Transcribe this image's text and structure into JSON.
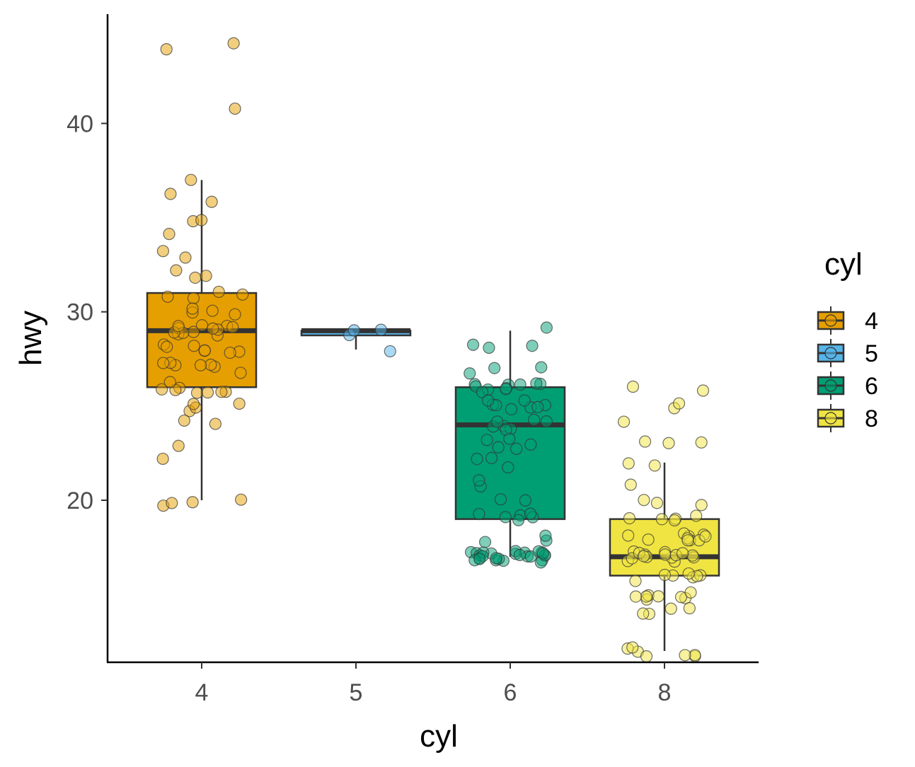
{
  "chart_data": {
    "type": "boxplot",
    "xlabel": "cyl",
    "ylabel": "hwy",
    "categories": [
      "4",
      "5",
      "6",
      "8"
    ],
    "ylim": [
      11.4,
      45.8
    ],
    "yticks": [
      20,
      30,
      40
    ],
    "grid": false,
    "legend": {
      "title": "cyl",
      "placement": "right",
      "entries": [
        "4",
        "5",
        "6",
        "8"
      ]
    },
    "colors": {
      "4": "#E69F00",
      "5": "#56B4E9",
      "6": "#009E73",
      "8": "#F0E442"
    },
    "boxes": [
      {
        "category": "4",
        "min": 20,
        "q1": 26,
        "median": 29,
        "q3": 31,
        "max": 37,
        "outliers": [
          44,
          44,
          41
        ],
        "points": [
          44,
          44,
          41,
          37,
          36,
          36,
          35,
          35,
          34,
          33,
          33,
          32,
          32,
          32,
          31,
          31,
          31,
          31,
          30,
          30,
          30,
          30,
          29,
          29,
          29,
          29,
          29,
          29,
          29,
          29,
          29,
          29,
          29,
          29,
          28,
          28,
          28,
          28,
          28,
          28,
          28,
          27,
          27,
          27,
          27,
          27,
          27,
          27,
          26,
          26,
          26,
          26,
          26,
          26,
          26,
          26,
          25,
          25,
          25,
          25,
          24,
          24,
          23,
          22,
          20,
          20,
          20,
          20
        ]
      },
      {
        "category": "5",
        "min": 28,
        "q1": 28.75,
        "median": 29,
        "q3": 29,
        "max": 29,
        "outliers": [],
        "points": [
          28,
          29,
          29,
          29
        ]
      },
      {
        "category": "6",
        "min": 17,
        "q1": 19,
        "median": 24,
        "q3": 26,
        "max": 29,
        "outliers": [],
        "points": [
          29,
          28,
          28,
          28,
          27,
          27,
          27,
          26,
          26,
          26,
          26,
          26,
          26,
          26,
          26,
          26,
          26,
          25,
          25,
          25,
          25,
          25,
          25,
          25,
          25,
          24,
          24,
          24,
          24,
          24,
          24,
          24,
          23,
          23,
          23,
          23,
          23,
          22,
          22,
          22,
          21,
          21,
          20,
          20,
          19,
          19,
          19,
          19,
          19,
          19,
          18,
          18,
          18,
          17,
          17,
          17,
          17,
          17,
          17,
          17,
          17,
          17,
          17,
          17,
          17,
          17,
          17,
          17,
          17,
          17,
          17,
          17,
          17,
          17,
          17,
          17,
          17,
          17,
          17
        ]
      },
      {
        "category": "8",
        "min": 12,
        "q1": 16,
        "median": 17,
        "q3": 19,
        "max": 22,
        "outliers": [
          26,
          26,
          25,
          25,
          24,
          23,
          23,
          23
        ],
        "points": [
          26,
          26,
          25,
          25,
          24,
          23,
          23,
          23,
          22,
          22,
          21,
          20,
          20,
          20,
          19,
          19,
          19,
          19,
          19,
          18,
          18,
          18,
          18,
          18,
          18,
          18,
          18,
          18,
          18,
          17,
          17,
          17,
          17,
          17,
          17,
          17,
          17,
          17,
          17,
          17,
          17,
          17,
          17,
          17,
          16,
          16,
          16,
          16,
          16,
          16,
          16,
          15,
          15,
          15,
          15,
          15,
          15,
          15,
          15,
          14,
          14,
          14,
          14,
          12,
          12,
          12,
          12,
          12,
          12,
          12
        ]
      }
    ]
  }
}
